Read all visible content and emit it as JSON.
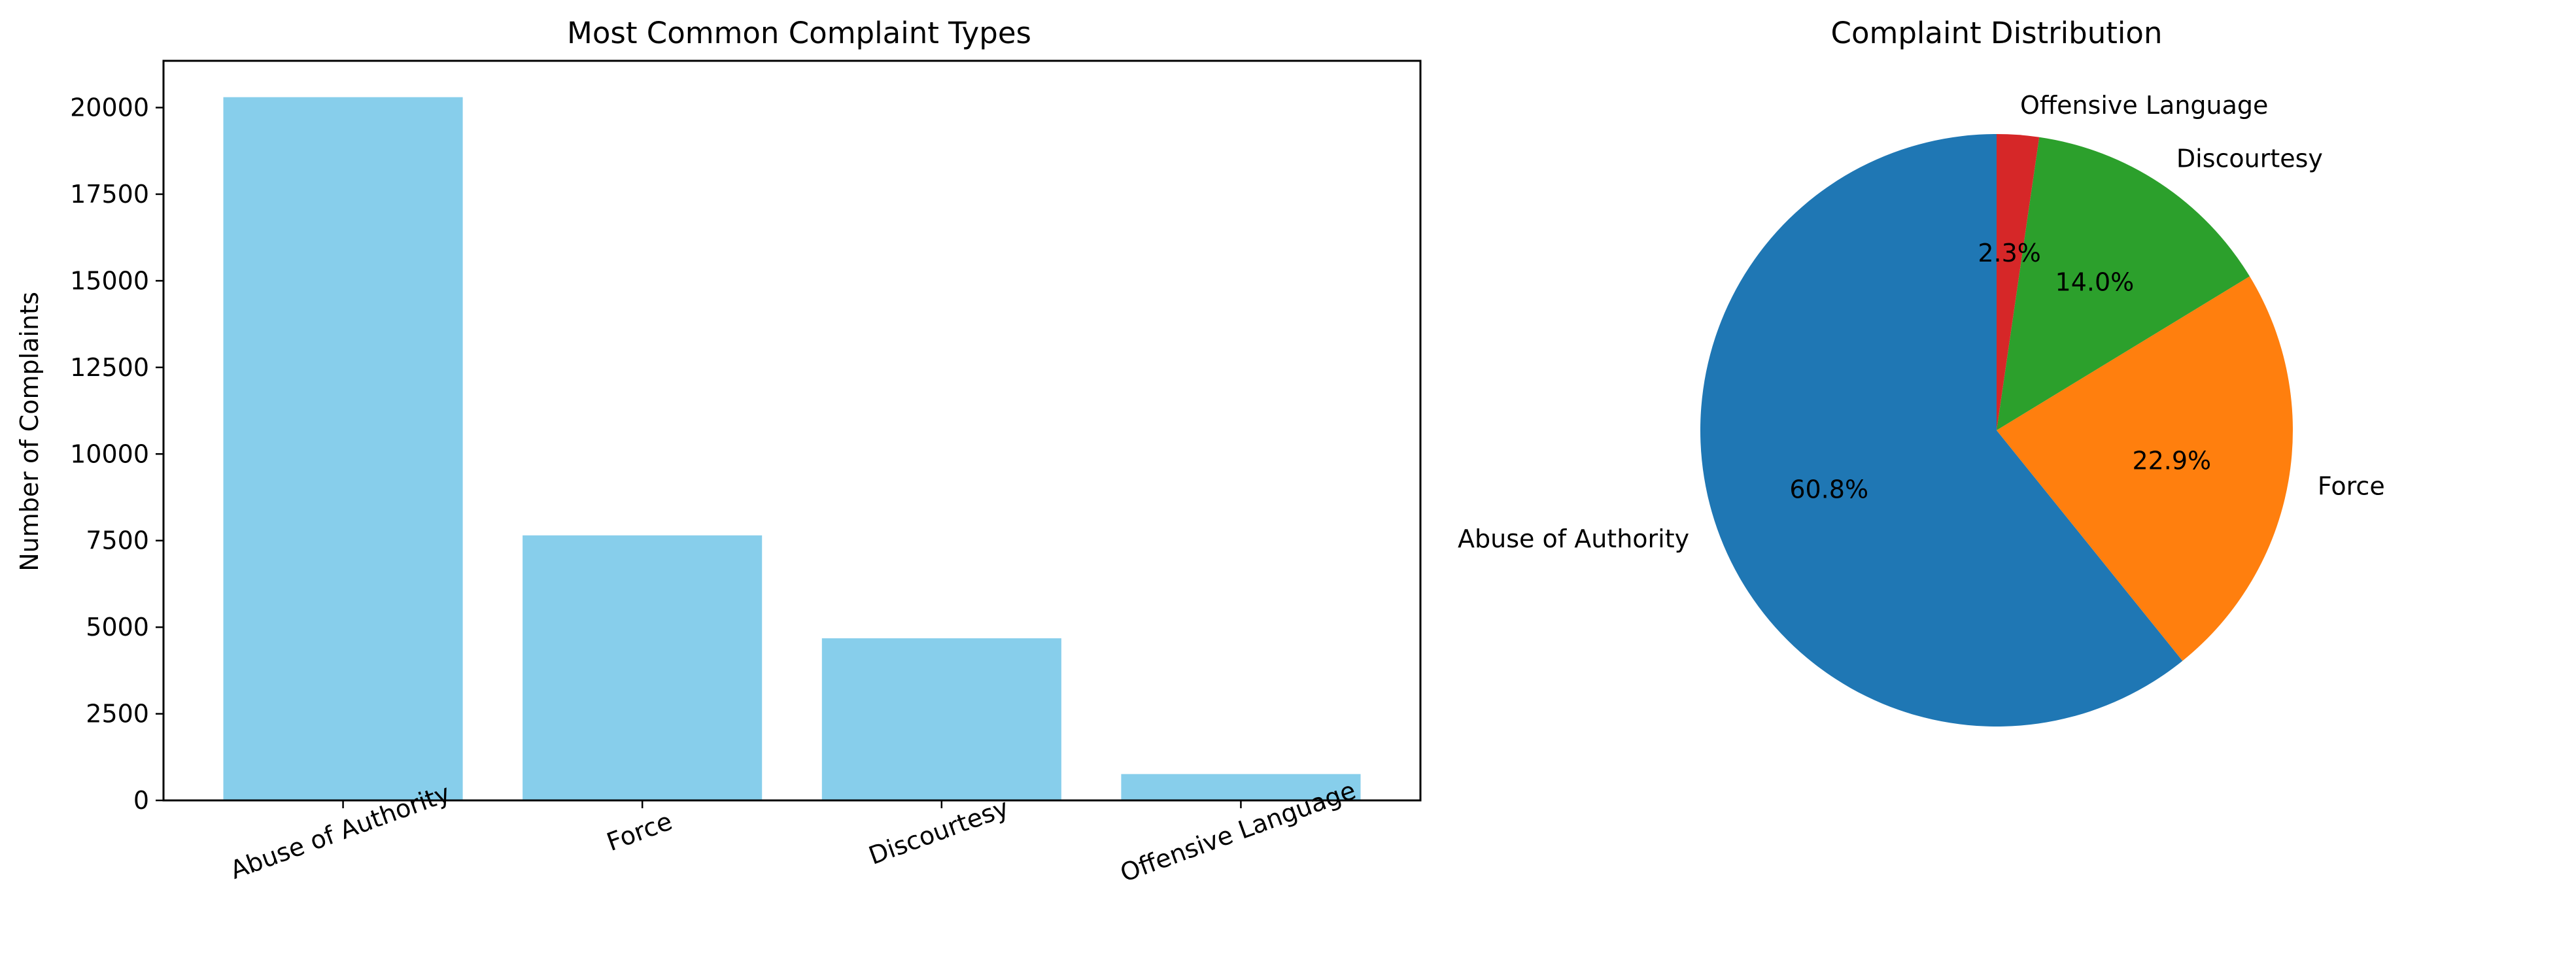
{
  "chart_data": [
    {
      "type": "bar",
      "title": "Most Common Complaint Types",
      "xlabel": "",
      "ylabel": "Number of Complaints",
      "categories": [
        "Abuse of Authority",
        "Force",
        "Discourtesy",
        "Offensive Language"
      ],
      "values": [
        20300,
        7650,
        4680,
        760
      ],
      "ylim": [
        0,
        21350
      ],
      "yticks": [
        0,
        2500,
        5000,
        7500,
        10000,
        12500,
        15000,
        17500,
        20000
      ],
      "ytick_labels": [
        "0",
        "2500",
        "5000",
        "7500",
        "10000",
        "12500",
        "15000",
        "17500",
        "20000"
      ],
      "bar_color": "#87ceeb",
      "grid": false,
      "legend": "none",
      "x_tick_rotation": "rotated"
    },
    {
      "type": "pie",
      "title": "Complaint Distribution",
      "labels": [
        "Abuse of Authority",
        "Force",
        "Discourtesy",
        "Offensive Language"
      ],
      "values": [
        60.8,
        22.9,
        14.0,
        2.3
      ],
      "autopct_labels": [
        "60.8%",
        "22.9%",
        "14.0%",
        "2.3%"
      ],
      "colors": [
        "#1f77b4",
        "#ff7f0e",
        "#2ca02c",
        "#d62728"
      ],
      "start_angle": "top, counter-clockwise",
      "legend": "none"
    }
  ]
}
